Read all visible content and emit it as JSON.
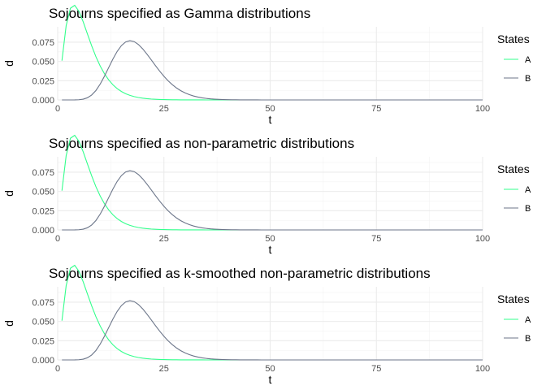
{
  "chart_data": [
    {
      "type": "line",
      "title": "Sojourns specified as Gamma distributions",
      "xlabel": "t",
      "ylabel": "d",
      "xlim": [
        0,
        100
      ],
      "ylim": [
        0,
        0.095
      ],
      "x_ticks": [
        "0",
        "25",
        "50",
        "75",
        "100"
      ],
      "y_ticks": [
        "0.000",
        "0.025",
        "0.050",
        "0.075"
      ],
      "grid": true,
      "legend": {
        "title": "States",
        "position": "right"
      },
      "series": [
        {
          "name": "A",
          "color": "#33ff8c",
          "shape": 2.5,
          "scale": 2.5
        },
        {
          "name": "B",
          "color": "#6b7589",
          "shape": 12,
          "scale": 1.55
        }
      ]
    },
    {
      "type": "line",
      "title": "Sojourns specified as non-parametric distributions",
      "xlabel": "t",
      "ylabel": "d",
      "xlim": [
        0,
        100
      ],
      "ylim": [
        0,
        0.095
      ],
      "x_ticks": [
        "0",
        "25",
        "50",
        "75",
        "100"
      ],
      "y_ticks": [
        "0.000",
        "0.025",
        "0.050",
        "0.075"
      ],
      "grid": true,
      "legend": {
        "title": "States",
        "position": "right"
      },
      "series": [
        {
          "name": "A",
          "color": "#33ff8c",
          "shape": 2.5,
          "scale": 2.5
        },
        {
          "name": "B",
          "color": "#6b7589",
          "shape": 12,
          "scale": 1.55
        }
      ]
    },
    {
      "type": "line",
      "title": "Sojourns specified as k-smoothed non-parametric distributions",
      "xlabel": "t",
      "ylabel": "d",
      "xlim": [
        0,
        100
      ],
      "ylim": [
        0,
        0.095
      ],
      "x_ticks": [
        "0",
        "25",
        "50",
        "75",
        "100"
      ],
      "y_ticks": [
        "0.000",
        "0.025",
        "0.050",
        "0.075"
      ],
      "grid": true,
      "legend": {
        "title": "States",
        "position": "right"
      },
      "series": [
        {
          "name": "A",
          "color": "#33ff8c",
          "shape": 2.5,
          "scale": 2.5
        },
        {
          "name": "B",
          "color": "#6b7589",
          "shape": 12,
          "scale": 1.55
        }
      ]
    }
  ]
}
